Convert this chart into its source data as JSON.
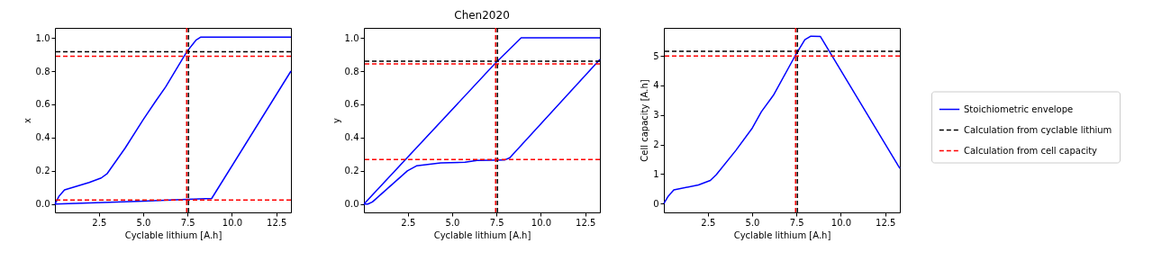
{
  "chart_data": [
    {
      "type": "line",
      "xlabel": "Cyclable lithium [A.h]",
      "ylabel": "x",
      "xlim": [
        0.02,
        13.33
      ],
      "ylim": [
        -0.05,
        1.06
      ],
      "xticks": [
        {
          "value": 2.5,
          "label": "2.5"
        },
        {
          "value": 5,
          "label": "5.0"
        },
        {
          "value": 7.5,
          "label": "7.5"
        },
        {
          "value": 10,
          "label": "10.0"
        },
        {
          "value": 12.5,
          "label": "12.5"
        }
      ],
      "yticks": [
        {
          "value": 0,
          "label": "0.0"
        },
        {
          "value": 0.2,
          "label": "0.2"
        },
        {
          "value": 0.4,
          "label": "0.4"
        },
        {
          "value": 0.6,
          "label": "0.6"
        },
        {
          "value": 0.8,
          "label": "0.8"
        },
        {
          "value": 1,
          "label": "1.0"
        }
      ],
      "series": [
        {
          "color": "#0000ff",
          "x": [
            0.02,
            0.26,
            0.56,
            1.95,
            2.63,
            2.97,
            3.98,
            5.0,
            5.68,
            6.27,
            7.46,
            7.97,
            8.25,
            13.33
          ],
          "values": [
            0,
            0.049,
            0.085,
            0.13,
            0.157,
            0.184,
            0.337,
            0.508,
            0.616,
            0.706,
            0.917,
            0.986,
            1.005,
            1.005
          ]
        },
        {
          "color": "#0000ff",
          "x": [
            0.02,
            5.0,
            7.46,
            8.86,
            13.33
          ],
          "values": [
            0,
            0.018,
            0.029,
            0.034,
            0.8
          ]
        }
      ],
      "ref_lines": [
        {
          "axis": "y",
          "value": 0.917,
          "color": "#000000",
          "line_style": "dashed"
        },
        {
          "axis": "x",
          "value": 7.55,
          "color": "#000000",
          "line_style": "dashed"
        },
        {
          "axis": "y",
          "value": 0.89,
          "color": "#ff0000",
          "line_style": "dashed"
        },
        {
          "axis": "y",
          "value": 0.025,
          "color": "#ff0000",
          "line_style": "dashed"
        },
        {
          "axis": "x",
          "value": 7.45,
          "color": "#ff0000",
          "line_style": "dashed"
        }
      ],
      "grid": false
    },
    {
      "type": "line",
      "title": "Chen2020",
      "xlabel": "Cyclable lithium [A.h]",
      "ylabel": "y",
      "xlim": [
        0.02,
        13.33
      ],
      "ylim": [
        -0.05,
        1.06
      ],
      "xticks": [
        {
          "value": 2.5,
          "label": "2.5"
        },
        {
          "value": 5,
          "label": "5.0"
        },
        {
          "value": 7.5,
          "label": "7.5"
        },
        {
          "value": 10,
          "label": "10.0"
        },
        {
          "value": 12.5,
          "label": "12.5"
        }
      ],
      "yticks": [
        {
          "value": 0,
          "label": "0.0"
        },
        {
          "value": 0.2,
          "label": "0.2"
        },
        {
          "value": 0.4,
          "label": "0.4"
        },
        {
          "value": 0.6,
          "label": "0.6"
        },
        {
          "value": 0.8,
          "label": "0.8"
        },
        {
          "value": 1,
          "label": "1.0"
        }
      ],
      "series": [
        {
          "color": "#0000ff",
          "x": [
            0.02,
            7.43,
            8.89,
            13.33
          ],
          "values": [
            0,
            0.847,
            1.0,
            1.0
          ]
        },
        {
          "color": "#0000ff",
          "x": [
            0.02,
            0.24,
            0.5,
            2.47,
            2.98,
            4.35,
            5.72,
            6.4,
            7.95,
            8.25,
            13.33
          ],
          "values": [
            0,
            0,
            0.013,
            0.2,
            0.23,
            0.248,
            0.252,
            0.263,
            0.265,
            0.279,
            0.87
          ]
        }
      ],
      "ref_lines": [
        {
          "axis": "y",
          "value": 0.86,
          "color": "#000000",
          "line_style": "dashed"
        },
        {
          "axis": "x",
          "value": 7.55,
          "color": "#000000",
          "line_style": "dashed"
        },
        {
          "axis": "y",
          "value": 0.843,
          "color": "#ff0000",
          "line_style": "dashed"
        },
        {
          "axis": "y",
          "value": 0.268,
          "color": "#ff0000",
          "line_style": "dashed"
        },
        {
          "axis": "x",
          "value": 7.45,
          "color": "#ff0000",
          "line_style": "dashed"
        }
      ],
      "grid": false
    },
    {
      "type": "line",
      "xlabel": "Cyclable lithium [A.h]",
      "ylabel": "Cell capacity [A.h]",
      "xlim": [
        0.02,
        13.33
      ],
      "ylim": [
        -0.3,
        5.95
      ],
      "xticks": [
        {
          "value": 2.5,
          "label": "2.5"
        },
        {
          "value": 5,
          "label": "5.0"
        },
        {
          "value": 7.5,
          "label": "7.5"
        },
        {
          "value": 10,
          "label": "10.0"
        },
        {
          "value": 12.5,
          "label": "12.5"
        }
      ],
      "yticks": [
        0,
        1,
        2,
        3,
        4,
        5
      ],
      "series": [
        {
          "name": "Stoichiometric envelope",
          "color": "#0000ff",
          "x": [
            0.02,
            0.27,
            0.58,
            1.97,
            2.64,
            2.98,
            4.08,
            5.01,
            5.52,
            6.2,
            7.41,
            7.97,
            8.31,
            8.85,
            13.33
          ],
          "values": [
            0,
            0.25,
            0.46,
            0.63,
            0.78,
            0.98,
            1.8,
            2.56,
            3.11,
            3.67,
            4.99,
            5.55,
            5.67,
            5.66,
            1.19
          ]
        }
      ],
      "ref_lines": [
        {
          "axis": "y",
          "value": 5.16,
          "label": "Calculation from cyclable lithium",
          "color": "#000000",
          "line_style": "dashed"
        },
        {
          "axis": "x",
          "value": 7.55,
          "color": "#000000",
          "line_style": "dashed"
        },
        {
          "axis": "y",
          "value": 5.0,
          "label": "Calculation from cell capacity",
          "color": "#ff0000",
          "line_style": "dashed"
        },
        {
          "axis": "x",
          "value": 7.45,
          "color": "#ff0000",
          "line_style": "dashed"
        }
      ],
      "grid": false,
      "legend": "right"
    }
  ]
}
